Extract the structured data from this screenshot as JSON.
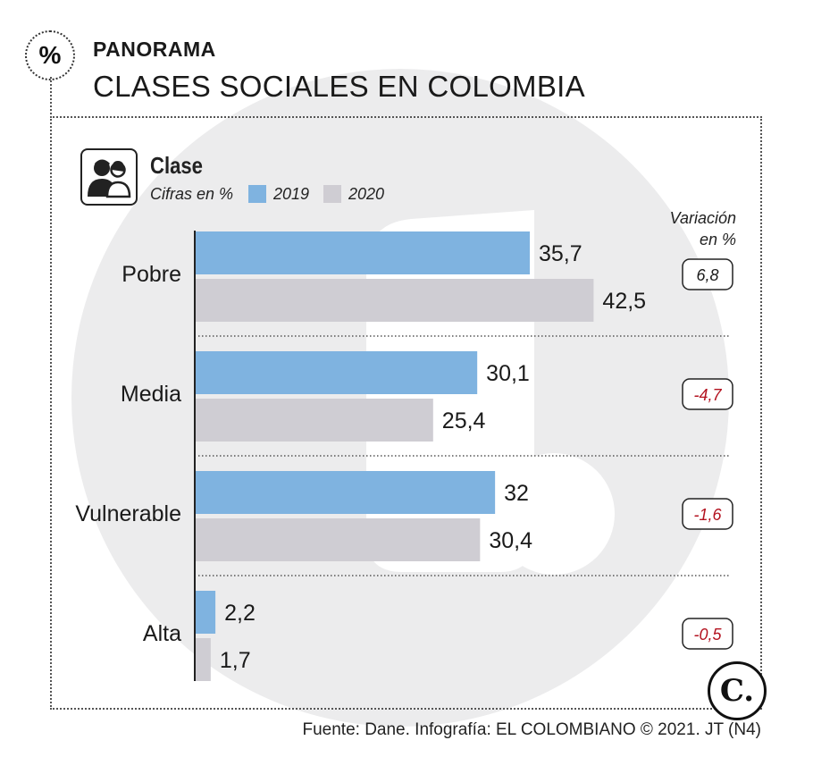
{
  "header": {
    "badge_symbol": "%",
    "kicker": "PANORAMA",
    "headline": "CLASES SOCIALES EN COLOMBIA"
  },
  "panel": {
    "title": "Clase",
    "unit_note": "Cifras en %",
    "icon": "people-icon",
    "variation_title_line1": "Variación",
    "variation_title_line2": "en %"
  },
  "legend": [
    {
      "label": "2019",
      "color": "#7fb3e0"
    },
    {
      "label": "2020",
      "color": "#cfcdd3"
    }
  ],
  "chart_data": {
    "type": "bar",
    "orientation": "horizontal",
    "title": "Clase",
    "categories": [
      "Pobre",
      "Media",
      "Vulnerable",
      "Alta"
    ],
    "series": [
      {
        "name": "2019",
        "values": [
          35.7,
          30.1,
          32,
          2.2
        ],
        "labels": [
          "35,7",
          "30,1",
          "32",
          "2,2"
        ],
        "color": "#7fb3e0"
      },
      {
        "name": "2020",
        "values": [
          42.5,
          25.4,
          30.4,
          1.7
        ],
        "labels": [
          "42,5",
          "25,4",
          "30,4",
          "1,7"
        ],
        "color": "#cfcdd3"
      }
    ],
    "variation": {
      "values": [
        6.8,
        -4.7,
        -1.6,
        -0.5
      ],
      "labels": [
        "6,8",
        "-4,7",
        "-1,6",
        "-0,5"
      ],
      "positive_color": "#1a1a1a",
      "negative_color": "#b3121f"
    },
    "xlim": [
      0,
      45
    ],
    "grid": false,
    "legend_position": "top-left"
  },
  "footer": {
    "source": "Fuente: Dane. Infografía: EL COLOMBIANO © 2021. JT (N4)",
    "logo_text": "C."
  }
}
